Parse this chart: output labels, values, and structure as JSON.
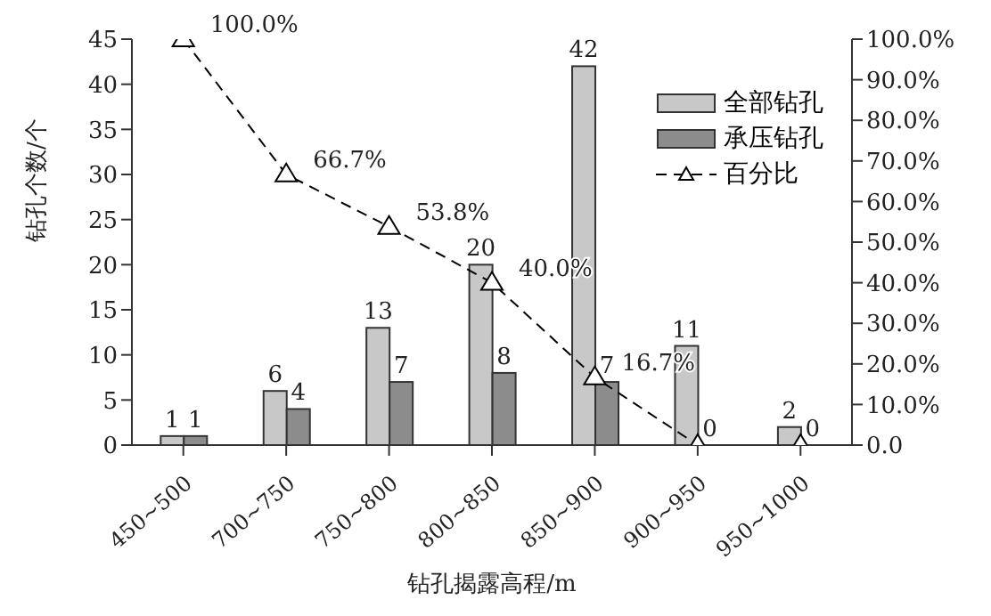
{
  "chart_data": {
    "type": "bar",
    "xlabel": "钻孔揭露高程/m",
    "ylabel": "钻孔个数/个",
    "categories": [
      "450~500",
      "700~750",
      "750~800",
      "800~850",
      "850~900",
      "900~950",
      "950~1000"
    ],
    "series": [
      {
        "name": "全部钻孔",
        "color": "#c8c8c8",
        "values": [
          1,
          6,
          13,
          20,
          42,
          11,
          2
        ]
      },
      {
        "name": "承压钻孔",
        "color": "#8c8c8c",
        "values": [
          1,
          4,
          7,
          8,
          7,
          0,
          0
        ]
      },
      {
        "name": "百分比",
        "type": "line",
        "axis": "y2",
        "color": "#000000",
        "marker": "triangle",
        "line_style": "dashed",
        "values": [
          100,
          66.7,
          53.8,
          40,
          16.7,
          0,
          0
        ],
        "value_labels": [
          "100.0%",
          "66.7%",
          "53.8%",
          "40.0%",
          "16.7%",
          null,
          null
        ]
      }
    ],
    "data_labels": true,
    "ylim": [
      0,
      45
    ],
    "yticks": [
      0,
      5,
      10,
      15,
      20,
      25,
      30,
      35,
      40,
      45
    ],
    "y2lim": [
      0,
      100
    ],
    "y2ticks": [
      {
        "value": 0,
        "label": "0.0"
      },
      {
        "value": 10,
        "label": "10.0%"
      },
      {
        "value": 20,
        "label": "20.0%"
      },
      {
        "value": 30,
        "label": "30.0%"
      },
      {
        "value": 40,
        "label": "40.0%"
      },
      {
        "value": 50,
        "label": "50.0%"
      },
      {
        "value": 60,
        "label": "60.0%"
      },
      {
        "value": 70,
        "label": "70.0%"
      },
      {
        "value": 80,
        "label": "80.0%"
      },
      {
        "value": 90,
        "label": "90.0%"
      },
      {
        "value": 100,
        "label": "100.0%"
      }
    ],
    "legend": "top right",
    "grid": false
  }
}
